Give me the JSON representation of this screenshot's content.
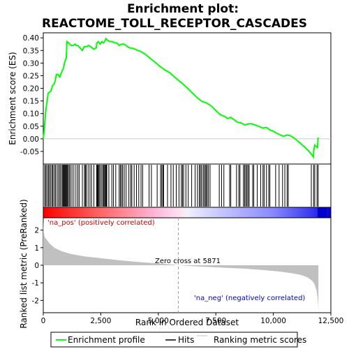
{
  "chart_data": {
    "type": "line",
    "title_line1": "Enrichment plot:",
    "title_line2": "REACTOME_TOLL_RECEPTOR_CASCADES",
    "xlabel": "Rank in Ordered Dataset",
    "ylabel_top": "Enrichment score (ES)",
    "ylabel_bottom": "Ranked list metric (PreRanked)",
    "xlim": [
      0,
      12500
    ],
    "x_ticks": [
      0,
      2500,
      5000,
      7500,
      10000,
      12500
    ],
    "x_tick_labels": [
      "0",
      "2,500",
      "5,000",
      "7,500",
      "10,000",
      "12,500"
    ],
    "es_ylim": [
      -0.1,
      0.42
    ],
    "es_ticks": [
      -0.05,
      0.0,
      0.05,
      0.1,
      0.15,
      0.2,
      0.25,
      0.3,
      0.35,
      0.4
    ],
    "es_tick_labels": [
      "-0.05",
      "0.00",
      "0.05",
      "0.10",
      "0.15",
      "0.20",
      "0.25",
      "0.30",
      "0.35",
      "0.40"
    ],
    "metric_ylim": [
      -2.7,
      2.7
    ],
    "metric_ticks": [
      -2,
      -1,
      0,
      1,
      2
    ],
    "metric_tick_labels": [
      "-2",
      "-1",
      "0",
      "1",
      "2"
    ],
    "n_total": 11960,
    "zero_cross": 5871,
    "zero_cross_label": "Zero cross at 5871",
    "pos_label": "'na_pos' (positively correlated)",
    "neg_label": "'na_neg' (negatively correlated)",
    "series": [
      {
        "name": "Enrichment profile",
        "color": "#00ff00",
        "points": [
          [
            0,
            0.0
          ],
          [
            40,
            0.03
          ],
          [
            80,
            0.08
          ],
          [
            120,
            0.12
          ],
          [
            170,
            0.15
          ],
          [
            210,
            0.18
          ],
          [
            280,
            0.185
          ],
          [
            340,
            0.19
          ],
          [
            400,
            0.21
          ],
          [
            460,
            0.215
          ],
          [
            520,
            0.23
          ],
          [
            570,
            0.255
          ],
          [
            640,
            0.255
          ],
          [
            720,
            0.245
          ],
          [
            780,
            0.26
          ],
          [
            830,
            0.27
          ],
          [
            880,
            0.28
          ],
          [
            920,
            0.3
          ],
          [
            960,
            0.31
          ],
          [
            1000,
            0.32
          ],
          [
            1030,
            0.385
          ],
          [
            1100,
            0.38
          ],
          [
            1200,
            0.37
          ],
          [
            1300,
            0.37
          ],
          [
            1380,
            0.375
          ],
          [
            1440,
            0.37
          ],
          [
            1500,
            0.37
          ],
          [
            1600,
            0.36
          ],
          [
            1700,
            0.35
          ],
          [
            1780,
            0.365
          ],
          [
            1880,
            0.365
          ],
          [
            1980,
            0.37
          ],
          [
            2100,
            0.362
          ],
          [
            2200,
            0.355
          ],
          [
            2300,
            0.36
          ],
          [
            2330,
            0.38
          ],
          [
            2400,
            0.385
          ],
          [
            2470,
            0.375
          ],
          [
            2550,
            0.385
          ],
          [
            2620,
            0.38
          ],
          [
            2700,
            0.39
          ],
          [
            2720,
            0.397
          ],
          [
            2800,
            0.39
          ],
          [
            2900,
            0.385
          ],
          [
            3000,
            0.385
          ],
          [
            3100,
            0.38
          ],
          [
            3200,
            0.38
          ],
          [
            3300,
            0.37
          ],
          [
            3420,
            0.375
          ],
          [
            3500,
            0.375
          ],
          [
            3600,
            0.37
          ],
          [
            3700,
            0.362
          ],
          [
            3800,
            0.36
          ],
          [
            3900,
            0.358
          ],
          [
            4000,
            0.355
          ],
          [
            4100,
            0.35
          ],
          [
            4200,
            0.348
          ],
          [
            4350,
            0.34
          ],
          [
            4500,
            0.33
          ],
          [
            4700,
            0.315
          ],
          [
            4900,
            0.3
          ],
          [
            5100,
            0.285
          ],
          [
            5300,
            0.272
          ],
          [
            5500,
            0.262
          ],
          [
            5700,
            0.245
          ],
          [
            5900,
            0.23
          ],
          [
            6100,
            0.215
          ],
          [
            6300,
            0.198
          ],
          [
            6500,
            0.18
          ],
          [
            6700,
            0.162
          ],
          [
            6900,
            0.148
          ],
          [
            7100,
            0.142
          ],
          [
            7300,
            0.13
          ],
          [
            7500,
            0.112
          ],
          [
            7700,
            0.095
          ],
          [
            7900,
            0.088
          ],
          [
            8000,
            0.08
          ],
          [
            8150,
            0.085
          ],
          [
            8300,
            0.075
          ],
          [
            8450,
            0.065
          ],
          [
            8600,
            0.063
          ],
          [
            8750,
            0.055
          ],
          [
            8900,
            0.058
          ],
          [
            9000,
            0.06
          ],
          [
            9200,
            0.055
          ],
          [
            9400,
            0.048
          ],
          [
            9550,
            0.042
          ],
          [
            9700,
            0.045
          ],
          [
            9850,
            0.035
          ],
          [
            10000,
            0.03
          ],
          [
            10150,
            0.022
          ],
          [
            10300,
            0.015
          ],
          [
            10450,
            0.01
          ],
          [
            10600,
            0.015
          ],
          [
            10750,
            0.012
          ],
          [
            10900,
            0.003
          ],
          [
            11050,
            -0.008
          ],
          [
            11200,
            -0.02
          ],
          [
            11350,
            -0.032
          ],
          [
            11500,
            -0.045
          ],
          [
            11650,
            -0.06
          ],
          [
            11740,
            -0.072
          ],
          [
            11760,
            -0.045
          ],
          [
            11800,
            -0.025
          ],
          [
            11850,
            -0.03
          ],
          [
            11920,
            -0.035
          ],
          [
            11940,
            0.0
          ],
          [
            11960,
            0.005
          ]
        ]
      }
    ],
    "hits_label": "Hits",
    "hits": [
      60,
      110,
      160,
      220,
      260,
      320,
      380,
      420,
      480,
      530,
      600,
      660,
      720,
      770,
      830,
      860,
      890,
      920,
      950,
      980,
      1010,
      1040,
      1080,
      1130,
      1180,
      1250,
      1330,
      1420,
      1500,
      1560,
      1700,
      1790,
      1830,
      1870,
      1950,
      2030,
      2100,
      2200,
      2320,
      2350,
      2380,
      2420,
      2460,
      2520,
      2580,
      2620,
      2660,
      2700,
      2730,
      2760,
      2850,
      2980,
      3050,
      3150,
      3300,
      3350,
      3400,
      3450,
      3520,
      3600,
      3720,
      3800,
      3850,
      3950,
      4050,
      4150,
      4250,
      4320,
      4600,
      4700,
      4950,
      5100,
      5150,
      5200,
      5230,
      5400,
      5550,
      5650,
      5780,
      5900,
      6000,
      6050,
      6100,
      6200,
      6300,
      6450,
      6600,
      6700,
      6780,
      6830,
      6880,
      6950,
      7000,
      7050,
      7100,
      7120,
      7180,
      7250,
      7650,
      7750,
      7850,
      8100,
      8150,
      8400,
      8500,
      8550,
      8700,
      8750,
      8800,
      8850,
      8900,
      8950,
      9100,
      9150,
      9300,
      9450,
      9550,
      9600,
      9700,
      9800,
      9850,
      10100,
      10250,
      10400,
      10500,
      10600,
      10650,
      11650,
      11750,
      11800,
      11900,
      11950
    ],
    "metric_label": "Ranking metric scores",
    "metric_profile": [
      [
        0,
        2.65
      ],
      [
        20,
        1.9
      ],
      [
        60,
        1.6
      ],
      [
        150,
        1.45
      ],
      [
        300,
        1.2
      ],
      [
        500,
        0.98
      ],
      [
        800,
        0.8
      ],
      [
        1200,
        0.64
      ],
      [
        1800,
        0.5
      ],
      [
        2500,
        0.4
      ],
      [
        3200,
        0.3
      ],
      [
        4000,
        0.2
      ],
      [
        4800,
        0.12
      ],
      [
        5500,
        0.05
      ],
      [
        5871,
        0.0
      ],
      [
        6500,
        -0.05
      ],
      [
        7200,
        -0.1
      ],
      [
        8000,
        -0.15
      ],
      [
        8800,
        -0.2
      ],
      [
        9500,
        -0.27
      ],
      [
        10200,
        -0.35
      ],
      [
        10800,
        -0.45
      ],
      [
        11200,
        -0.55
      ],
      [
        11500,
        -0.7
      ],
      [
        11700,
        -0.9
      ],
      [
        11800,
        -1.1
      ],
      [
        11880,
        -1.45
      ],
      [
        11920,
        -1.8
      ],
      [
        11950,
        -2.3
      ],
      [
        11960,
        -2.6
      ]
    ],
    "colors": {
      "es_line": "#00ff00",
      "hit": "#000000",
      "metric_fill": "#c0c0c0",
      "pos_text": "#cc0000",
      "neg_text": "#0000cc",
      "zero_line": "#a0a0a0"
    }
  }
}
